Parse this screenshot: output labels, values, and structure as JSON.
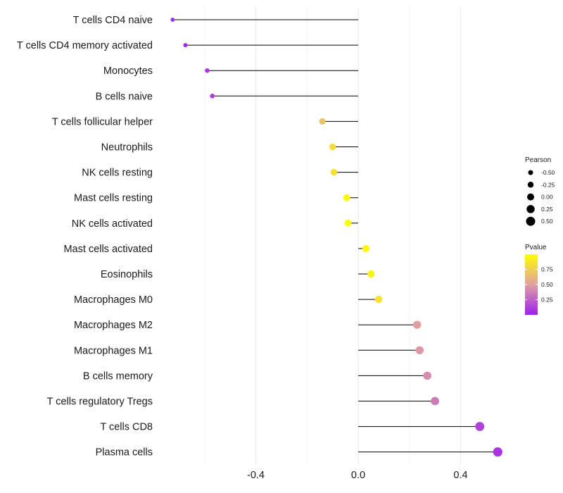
{
  "chart_data": {
    "type": "lollipop",
    "title": "",
    "xlabel": "",
    "ylabel": "",
    "xlim": [
      -0.73,
      0.6
    ],
    "x_ticks": [
      -0.4,
      0.0,
      0.4
    ],
    "x_tick_labels": [
      "-0.4",
      "0.0",
      "0.4"
    ],
    "categories": [
      "T cells CD4 naive",
      "T cells CD4 memory activated",
      "Monocytes",
      "B cells naive",
      "T cells follicular helper",
      "Neutrophils",
      "NK cells resting",
      "Mast cells resting",
      "NK cells activated",
      "Mast cells activated",
      "Eosinophils",
      "Macrophages M0",
      "Macrophages M2",
      "Macrophages M1",
      "B cells memory",
      "T cells regulatory  Tregs",
      "T cells CD8",
      "Plasma cells"
    ],
    "values": [
      -0.725,
      -0.675,
      -0.59,
      -0.57,
      -0.14,
      -0.1,
      -0.095,
      -0.045,
      -0.04,
      0.03,
      0.05,
      0.08,
      0.23,
      0.24,
      0.27,
      0.3,
      0.475,
      0.545
    ],
    "pvalues": [
      0.01,
      0.03,
      0.08,
      0.09,
      0.68,
      0.82,
      0.84,
      0.95,
      0.97,
      0.96,
      0.92,
      0.85,
      0.5,
      0.47,
      0.42,
      0.35,
      0.13,
      0.08
    ],
    "legend_size": {
      "title": "Pearson",
      "labels": [
        "-0.50",
        "-0.25",
        "0.00",
        "0.25",
        "0.50"
      ],
      "breaks": [
        -0.5,
        -0.25,
        0.0,
        0.25,
        0.5
      ]
    },
    "legend_color": {
      "title": "Pvalue",
      "labels": [
        "0.75",
        "0.50",
        "0.25"
      ],
      "breaks": [
        0.75,
        0.5,
        0.25
      ],
      "range": [
        0.0,
        1.0
      ],
      "low_color": "#a020f0",
      "mid_color": "#e0a0a0",
      "high_color": "#ffff00"
    },
    "legend_position": "right"
  }
}
